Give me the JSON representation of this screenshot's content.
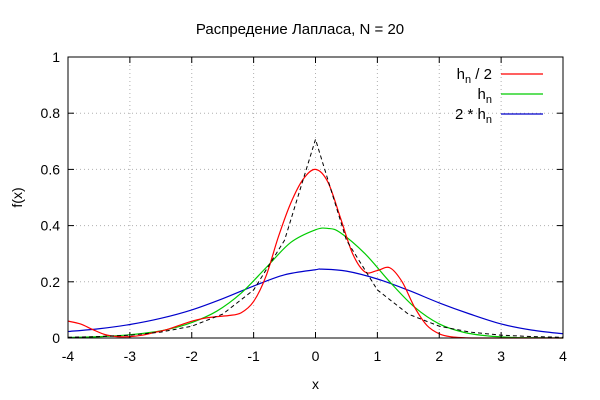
{
  "chart_data": {
    "type": "line",
    "title": "Распредение Лапласа, N = 20",
    "xlabel": "x",
    "ylabel": "f(x)",
    "xlim": [
      -4,
      4
    ],
    "ylim": [
      0,
      1
    ],
    "xticks": [
      -4,
      -3,
      -2,
      -1,
      0,
      1,
      2,
      3,
      4
    ],
    "yticks": [
      0,
      0.2,
      0.4,
      0.6,
      0.8,
      1
    ],
    "ytick_labels": [
      "0",
      "0.2",
      "0.4",
      "0.6",
      "0.8",
      "1"
    ],
    "grid": true,
    "legend_position": "top-right",
    "colors": {
      "series_h_half": "#ff0000",
      "series_h": "#00cc00",
      "series_2h": "#0000cc",
      "reference": "#000000"
    },
    "series": [
      {
        "name_main": "h",
        "name_sub": "n",
        "name_suffix": " / 2",
        "color": "#ff0000",
        "x": [
          -4,
          -3.8,
          -3.6,
          -3.4,
          -3.2,
          -3.0,
          -2.8,
          -2.6,
          -2.4,
          -2.2,
          -2.0,
          -1.8,
          -1.6,
          -1.4,
          -1.2,
          -1.0,
          -0.8,
          -0.6,
          -0.4,
          -0.2,
          0.0,
          0.2,
          0.4,
          0.6,
          0.8,
          1.0,
          1.2,
          1.4,
          1.6,
          1.8,
          2.0,
          2.2,
          2.4,
          2.6,
          2.8,
          3.0,
          3.2,
          3.4,
          3.6,
          3.8,
          4.0
        ],
        "y": [
          0.06,
          0.05,
          0.03,
          0.012,
          0.005,
          0.005,
          0.01,
          0.02,
          0.03,
          0.045,
          0.06,
          0.07,
          0.076,
          0.08,
          0.09,
          0.13,
          0.22,
          0.36,
          0.48,
          0.565,
          0.6,
          0.555,
          0.43,
          0.3,
          0.235,
          0.24,
          0.25,
          0.2,
          0.11,
          0.045,
          0.015,
          0.004,
          0.001,
          0,
          0,
          0,
          0,
          0,
          0,
          0,
          0
        ]
      },
      {
        "name_main": "h",
        "name_sub": "n",
        "name_suffix": "",
        "color": "#00cc00",
        "x": [
          -4,
          -3.6,
          -3.2,
          -2.8,
          -2.4,
          -2.0,
          -1.6,
          -1.2,
          -0.8,
          -0.4,
          0.0,
          0.2,
          0.4,
          0.8,
          1.2,
          1.6,
          2.0,
          2.4,
          2.8,
          3.2,
          3.6,
          4.0
        ],
        "y": [
          0.002,
          0.004,
          0.008,
          0.016,
          0.03,
          0.055,
          0.095,
          0.16,
          0.25,
          0.34,
          0.385,
          0.39,
          0.375,
          0.3,
          0.2,
          0.11,
          0.05,
          0.02,
          0.007,
          0.002,
          0.001,
          0
        ]
      },
      {
        "name_main": "2 * h",
        "name_sub": "n",
        "name_suffix": "",
        "color": "#0000cc",
        "x": [
          -4,
          -3.5,
          -3.0,
          -2.5,
          -2.0,
          -1.5,
          -1.0,
          -0.5,
          0.0,
          0.1,
          0.5,
          1.0,
          1.5,
          2.0,
          2.5,
          3.0,
          3.5,
          4.0
        ],
        "y": [
          0.023,
          0.033,
          0.048,
          0.07,
          0.1,
          0.14,
          0.185,
          0.225,
          0.243,
          0.245,
          0.238,
          0.21,
          0.17,
          0.125,
          0.085,
          0.05,
          0.028,
          0.015
        ]
      },
      {
        "name_main": "",
        "name_sub": "",
        "name_suffix": "",
        "color": "#000000",
        "dashed": true,
        "x": [
          -4,
          -3.5,
          -3.0,
          -2.5,
          -2.0,
          -1.5,
          -1.0,
          -0.5,
          0.0,
          0.5,
          1.0,
          1.5,
          2.0,
          2.5,
          3.0,
          3.5,
          4.0
        ],
        "y": [
          0.0025,
          0.005,
          0.01,
          0.021,
          0.042,
          0.085,
          0.171,
          0.348,
          0.707,
          0.348,
          0.171,
          0.085,
          0.042,
          0.021,
          0.01,
          0.005,
          0.0025
        ]
      }
    ]
  }
}
